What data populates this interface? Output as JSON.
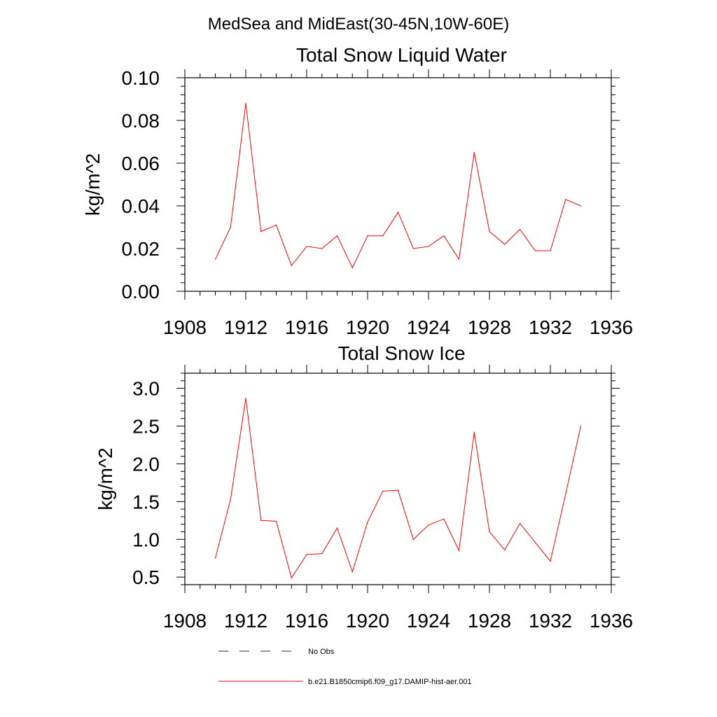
{
  "figure_title": "MedSea and MidEast(30-45N,10W-60E)",
  "colors": {
    "series": "#ff0000",
    "obs": "#1a2a5a",
    "axis": "#000000"
  },
  "legend": [
    {
      "label": "No Obs",
      "style": "dashed",
      "color": "#1a2a5a"
    },
    {
      "label": "b.e21.B1850cmip6.f09_g17.DAMIP-hist-aer.001",
      "style": "solid",
      "color": "#ff0000"
    }
  ],
  "chart_data": [
    {
      "type": "line",
      "title": "Total Snow Liquid Water",
      "xlabel": "",
      "ylabel": "kg/m^2",
      "xlim": [
        1908,
        1936
      ],
      "ylim": [
        0,
        0.1
      ],
      "x_ticks": [
        "1908",
        "1912",
        "1916",
        "1920",
        "1924",
        "1928",
        "1932",
        "1936"
      ],
      "y_ticks": [
        "0.00",
        "0.02",
        "0.04",
        "0.06",
        "0.08",
        "0.10"
      ],
      "grid": false,
      "series": [
        {
          "x": [
            1910,
            1911,
            1912,
            1913,
            1914,
            1915,
            1916,
            1917,
            1918,
            1919,
            1920,
            1921,
            1922,
            1923,
            1924,
            1925,
            1926,
            1927,
            1928,
            1929,
            1930,
            1931,
            1932,
            1933,
            1934
          ],
          "values": [
            0.015,
            0.03,
            0.088,
            0.028,
            0.031,
            0.012,
            0.021,
            0.02,
            0.026,
            0.011,
            0.026,
            0.026,
            0.037,
            0.02,
            0.021,
            0.026,
            0.015,
            0.065,
            0.028,
            0.022,
            0.029,
            0.019,
            0.019,
            0.043,
            0.04
          ]
        }
      ]
    },
    {
      "type": "line",
      "title": "Total Snow Ice",
      "xlabel": "",
      "ylabel": "kg/m^2",
      "xlim": [
        1908,
        1936
      ],
      "ylim": [
        0.4,
        3.2
      ],
      "x_ticks": [
        "1908",
        "1912",
        "1916",
        "1920",
        "1924",
        "1928",
        "1932",
        "1936"
      ],
      "y_ticks": [
        "0.5",
        "1.0",
        "1.5",
        "2.0",
        "2.5",
        "3.0"
      ],
      "grid": false,
      "series": [
        {
          "x": [
            1910,
            1911,
            1912,
            1913,
            1914,
            1915,
            1916,
            1917,
            1918,
            1919,
            1920,
            1921,
            1922,
            1923,
            1924,
            1925,
            1926,
            1927,
            1928,
            1929,
            1930,
            1931,
            1932,
            1933,
            1934
          ],
          "values": [
            0.75,
            1.53,
            2.87,
            1.25,
            1.24,
            0.49,
            0.8,
            0.81,
            1.15,
            0.57,
            1.23,
            1.64,
            1.65,
            1.0,
            1.19,
            1.27,
            0.85,
            2.42,
            1.1,
            0.86,
            1.21,
            0.96,
            0.71,
            1.6,
            2.5
          ]
        }
      ]
    }
  ]
}
